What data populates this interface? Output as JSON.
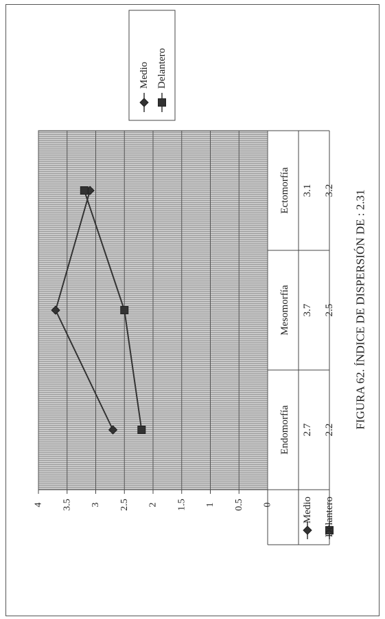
{
  "caption": "FIGURA 62. ÍNDICE DE DISPERSIÓN DE : 2.31",
  "chart_data": {
    "type": "line",
    "orientation": "rotated-90-ccw",
    "title": "",
    "xlabel": "",
    "ylabel": "",
    "categories": [
      "Endomorfía",
      "Mesomorfía",
      "Ectomorfía"
    ],
    "ylim": [
      0,
      4
    ],
    "yticks": [
      0,
      0.5,
      1,
      1.5,
      2,
      2.5,
      3,
      3.5,
      4
    ],
    "ytick_labels": [
      "0",
      "0.5",
      "1",
      "1.5",
      "2",
      "2.5",
      "3",
      "3.5",
      "4"
    ],
    "grid": true,
    "legend_position": "top-right",
    "series": [
      {
        "name": "Medio",
        "marker": "diamond",
        "color": "#333333",
        "values": [
          2.7,
          3.7,
          3.1
        ],
        "value_labels": [
          "2.7",
          "3.7",
          "3.1"
        ]
      },
      {
        "name": "Delantero",
        "marker": "square",
        "color": "#333333",
        "values": [
          2.2,
          2.5,
          3.2
        ],
        "value_labels": [
          "2.2",
          "2.5",
          "3.2"
        ]
      }
    ]
  }
}
